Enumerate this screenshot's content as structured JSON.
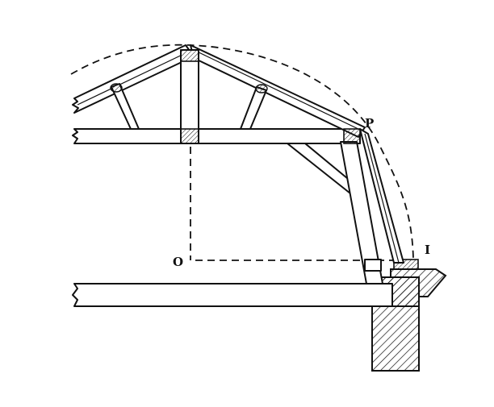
{
  "labels": {
    "point_p": "P",
    "point_o": "O",
    "point_i": "I"
  },
  "colors": {
    "ink": "#111111",
    "paper": "#ffffff"
  }
}
